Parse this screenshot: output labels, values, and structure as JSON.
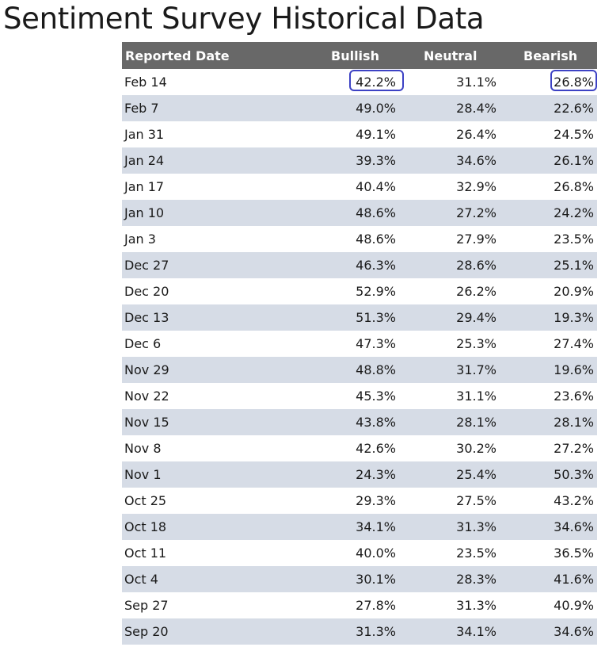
{
  "page": {
    "title": "Sentiment Survey Historical Data"
  },
  "table": {
    "headers": {
      "date": "Reported Date",
      "bullish": "Bullish",
      "neutral": "Neutral",
      "bearish": "Bearish"
    },
    "rows": [
      {
        "date": "Feb 14",
        "bullish": "42.2%",
        "neutral": "31.1%",
        "bearish": "26.8%"
      },
      {
        "date": "Feb 7",
        "bullish": "49.0%",
        "neutral": "28.4%",
        "bearish": "22.6%"
      },
      {
        "date": "Jan 31",
        "bullish": "49.1%",
        "neutral": "26.4%",
        "bearish": "24.5%"
      },
      {
        "date": "Jan 24",
        "bullish": "39.3%",
        "neutral": "34.6%",
        "bearish": "26.1%"
      },
      {
        "date": "Jan 17",
        "bullish": "40.4%",
        "neutral": "32.9%",
        "bearish": "26.8%"
      },
      {
        "date": "Jan 10",
        "bullish": "48.6%",
        "neutral": "27.2%",
        "bearish": "24.2%"
      },
      {
        "date": "Jan 3",
        "bullish": "48.6%",
        "neutral": "27.9%",
        "bearish": "23.5%"
      },
      {
        "date": "Dec 27",
        "bullish": "46.3%",
        "neutral": "28.6%",
        "bearish": "25.1%"
      },
      {
        "date": "Dec 20",
        "bullish": "52.9%",
        "neutral": "26.2%",
        "bearish": "20.9%"
      },
      {
        "date": "Dec 13",
        "bullish": "51.3%",
        "neutral": "29.4%",
        "bearish": "19.3%"
      },
      {
        "date": "Dec 6",
        "bullish": "47.3%",
        "neutral": "25.3%",
        "bearish": "27.4%"
      },
      {
        "date": "Nov 29",
        "bullish": "48.8%",
        "neutral": "31.7%",
        "bearish": "19.6%"
      },
      {
        "date": "Nov 22",
        "bullish": "45.3%",
        "neutral": "31.1%",
        "bearish": "23.6%"
      },
      {
        "date": "Nov 15",
        "bullish": "43.8%",
        "neutral": "28.1%",
        "bearish": "28.1%"
      },
      {
        "date": "Nov 8",
        "bullish": "42.6%",
        "neutral": "30.2%",
        "bearish": "27.2%"
      },
      {
        "date": "Nov 1",
        "bullish": "24.3%",
        "neutral": "25.4%",
        "bearish": "50.3%"
      },
      {
        "date": "Oct 25",
        "bullish": "29.3%",
        "neutral": "27.5%",
        "bearish": "43.2%"
      },
      {
        "date": "Oct 18",
        "bullish": "34.1%",
        "neutral": "31.3%",
        "bearish": "34.6%"
      },
      {
        "date": "Oct 11",
        "bullish": "40.0%",
        "neutral": "23.5%",
        "bearish": "36.5%"
      },
      {
        "date": "Oct 4",
        "bullish": "30.1%",
        "neutral": "28.3%",
        "bearish": "41.6%"
      },
      {
        "date": "Sep 27",
        "bullish": "27.8%",
        "neutral": "31.3%",
        "bearish": "40.9%"
      },
      {
        "date": "Sep 20",
        "bullish": "31.3%",
        "neutral": "34.1%",
        "bearish": "34.6%"
      }
    ]
  },
  "colors": {
    "header_bg": "#686868",
    "row_stripe": "#d6dce6",
    "highlight_border": "#3d42c4"
  }
}
